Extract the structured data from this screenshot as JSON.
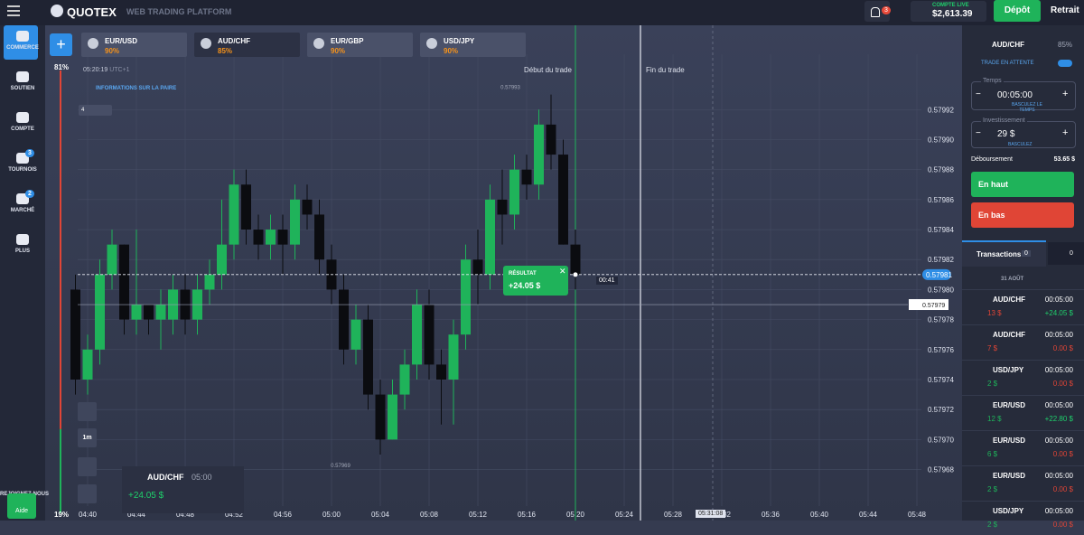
{
  "header": {
    "logo": "QUOTEX",
    "subtitle": "WEB TRADING PLATFORM",
    "notifications": "3",
    "account_label": "COMPTE LIVE",
    "balance": "$2,613.39",
    "deposit": "Dépôt",
    "withdraw": "Retrait"
  },
  "sidebar": {
    "items": [
      {
        "label": "COMMERCE"
      },
      {
        "label": "SOUTIEN"
      },
      {
        "label": "COMPTE"
      },
      {
        "label": "TOURNOIS",
        "badge": "3"
      },
      {
        "label": "MARCHÉ",
        "badge": "2"
      },
      {
        "label": "PLUS"
      }
    ],
    "join": "REJOIGNEZ-NOUS",
    "help": "Aide"
  },
  "tabs": [
    {
      "pair": "EUR/USD",
      "payout": "90%"
    },
    {
      "pair": "AUD/CHF",
      "payout": "85%"
    },
    {
      "pair": "EUR/GBP",
      "payout": "90%"
    },
    {
      "pair": "USD/JPY",
      "payout": "90%"
    }
  ],
  "chart_info": {
    "clock": "05:20:19",
    "timezone": "UTC+1",
    "pair_info": "INFORMATIONS SUR LA PAIRE",
    "indicator": "4",
    "trade_start": "Début du trade",
    "trade_end": "Fin du trade",
    "countdown": "00:41",
    "end_time": "05:31:08",
    "result_title": "RÉSULTAT",
    "result_value": "+24.05 $",
    "timeframe": "1m",
    "card_pair": "AUD/CHF",
    "card_time": "05:00",
    "card_profit": "+24.05 $"
  },
  "chart_data": {
    "type": "candlestick",
    "open": [
      0.5798,
      0.57974,
      0.57976,
      0.57981,
      0.57983,
      0.57978,
      0.57979,
      0.57978,
      0.57978,
      0.5798,
      0.57978,
      0.5798,
      0.57981,
      0.57983,
      0.57987,
      0.57984,
      0.57983,
      0.57984,
      0.57983,
      0.57986,
      0.57985,
      0.57982,
      0.5798,
      0.57976,
      0.57978,
      0.57973,
      0.5797,
      0.57973,
      0.57975,
      0.57979,
      0.57975,
      0.57974,
      0.57977,
      0.57982,
      0.57981,
      0.57986,
      0.57985,
      0.57988,
      0.57987,
      0.57991,
      0.57989,
      0.57983
    ],
    "high": [
      0.57981,
      0.57977,
      0.57982,
      0.57984,
      0.57983,
      0.57984,
      0.57979,
      0.5798,
      0.57981,
      0.57981,
      0.57981,
      0.57982,
      0.57986,
      0.57988,
      0.57988,
      0.57985,
      0.57985,
      0.57985,
      0.57987,
      0.57987,
      0.57986,
      0.57983,
      0.57981,
      0.57979,
      0.57979,
      0.57974,
      0.57974,
      0.57976,
      0.5798,
      0.5798,
      0.57976,
      0.57978,
      0.57983,
      0.57984,
      0.57987,
      0.57988,
      0.57989,
      0.57989,
      0.57992,
      0.57993,
      0.5799,
      0.57984
    ],
    "low": [
      0.57973,
      0.57973,
      0.57975,
      0.5798,
      0.57977,
      0.57977,
      0.57977,
      0.57976,
      0.57977,
      0.57977,
      0.57977,
      0.57979,
      0.5798,
      0.57982,
      0.57983,
      0.57982,
      0.57982,
      0.57981,
      0.57982,
      0.57984,
      0.57981,
      0.57979,
      0.57975,
      0.57975,
      0.57972,
      0.57969,
      0.5797,
      0.57972,
      0.57974,
      0.57974,
      0.57971,
      0.57971,
      0.57976,
      0.57979,
      0.5798,
      0.57983,
      0.57984,
      0.57986,
      0.57986,
      0.57988,
      0.57983,
      0.5798
    ],
    "close": [
      0.57974,
      0.57976,
      0.57981,
      0.57983,
      0.57978,
      0.57979,
      0.57978,
      0.57979,
      0.5798,
      0.57978,
      0.5798,
      0.57981,
      0.57983,
      0.57987,
      0.57984,
      0.57983,
      0.57984,
      0.57983,
      0.57986,
      0.57985,
      0.57982,
      0.5798,
      0.57976,
      0.57978,
      0.57973,
      0.5797,
      0.57973,
      0.57975,
      0.57979,
      0.57975,
      0.57974,
      0.57977,
      0.57982,
      0.57981,
      0.57986,
      0.57985,
      0.57988,
      0.57987,
      0.57991,
      0.57989,
      0.57983,
      0.57981
    ],
    "up_color": "#1fb35a",
    "down_color": "#0b0c10",
    "ylim": [
      0.579646,
      0.579975
    ],
    "yticks": [
      {
        "value": 0.57968,
        "label": "0.57968"
      },
      {
        "value": 0.5797,
        "label": "0.57970"
      },
      {
        "value": 0.57972,
        "label": "0.57972"
      },
      {
        "value": 0.57974,
        "label": "0.57974"
      },
      {
        "value": 0.57976,
        "label": "0.57976"
      },
      {
        "value": 0.57978,
        "label": "0.57978"
      },
      {
        "value": 0.5798,
        "label": "0.57980"
      },
      {
        "value": 0.57982,
        "label": "0.57982"
      },
      {
        "value": 0.57984,
        "label": "0.57984"
      },
      {
        "value": 0.57986,
        "label": "0.57986"
      },
      {
        "value": 0.57988,
        "label": "0.57988"
      },
      {
        "value": 0.5799,
        "label": "0.57990"
      },
      {
        "value": 0.57992,
        "label": "0.57992"
      }
    ],
    "xticks": [
      "04:40",
      "04:44",
      "04:48",
      "04:52",
      "04:56",
      "05:00",
      "05:04",
      "05:08",
      "05:12",
      "05:16",
      "05:20",
      "05:24",
      "05:28",
      "05:32",
      "05:36",
      "05:40",
      "05:44",
      "05:48"
    ],
    "current_price": 0.57981,
    "strike_price": 0.57979,
    "high_marker": 0.57993,
    "low_marker": 0.57969,
    "sentiment_top": {
      "value": 81,
      "label": "81%"
    },
    "sentiment_bottom": {
      "value": 19,
      "label": "19%"
    },
    "grid": true
  },
  "trade_panel": {
    "pair": "AUD/CHF",
    "payout": "85%",
    "pending": "TRADE EN ATTENTE",
    "time_label": "Temps",
    "time": "00:05:00",
    "time_switch": "BASCULEZ LE TEMPS",
    "invest_label": "Investissement",
    "amount": "29 $",
    "amount_switch": "BASCULEZ",
    "payout_label": "Déboursement",
    "payout_value": "53.65 $",
    "up": "En haut",
    "down": "En bas"
  },
  "transactions": {
    "tab": "Transactions",
    "count": "0",
    "pending_count": "0",
    "date": "31 AOÛT",
    "rows": [
      {
        "pair": "AUD/CHF",
        "amount": "13 $",
        "duration": "00:05:00",
        "profit": "+24.05 $"
      },
      {
        "pair": "AUD/CHF",
        "amount": "7 $",
        "duration": "00:05:00",
        "profit": "0.00 $"
      },
      {
        "pair": "USD/JPY",
        "amount": "2 $",
        "duration": "00:05:00",
        "profit": "0.00 $"
      },
      {
        "pair": "EUR/USD",
        "amount": "12 $",
        "duration": "00:05:00",
        "profit": "+22.80 $"
      },
      {
        "pair": "EUR/USD",
        "amount": "6 $",
        "duration": "00:05:00",
        "profit": "0.00 $"
      },
      {
        "pair": "EUR/USD",
        "amount": "2 $",
        "duration": "00:05:00",
        "profit": "0.00 $"
      },
      {
        "pair": "USD/JPY",
        "amount": "2 $",
        "duration": "00:05:00",
        "profit": "0.00 $"
      }
    ]
  }
}
